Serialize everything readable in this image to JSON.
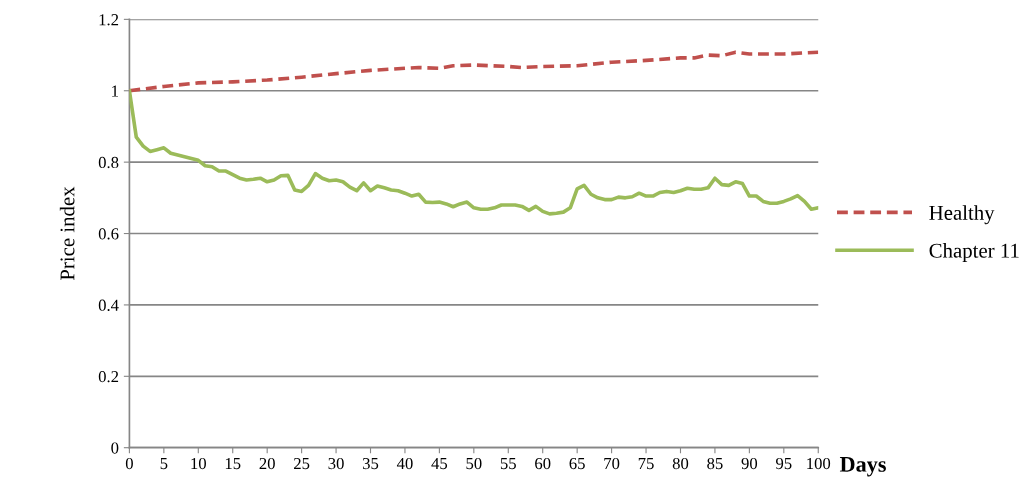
{
  "chart_data": {
    "type": "line",
    "xlabel": "Days",
    "ylabel": "Price index",
    "xlim": [
      0,
      100
    ],
    "xticks": [
      0,
      5,
      10,
      15,
      20,
      25,
      30,
      35,
      40,
      45,
      50,
      55,
      60,
      65,
      70,
      75,
      80,
      85,
      90,
      95,
      100
    ],
    "ylim": [
      0,
      1.2
    ],
    "yticks": [
      0,
      0.2,
      0.4,
      0.6,
      0.8,
      1,
      1.2
    ],
    "grid": "y",
    "legend": "right",
    "series": [
      {
        "name": "Healthy",
        "color": "#c0504d",
        "line_style": "dashed",
        "x": [
          0,
          5,
          10,
          15,
          20,
          25,
          30,
          35,
          40,
          42,
          45,
          47,
          50,
          55,
          57,
          60,
          65,
          70,
          75,
          80,
          82,
          84,
          86,
          88,
          90,
          95,
          100
        ],
        "values": [
          1.0,
          1.012,
          1.022,
          1.025,
          1.03,
          1.038,
          1.048,
          1.057,
          1.063,
          1.065,
          1.063,
          1.07,
          1.072,
          1.068,
          1.065,
          1.068,
          1.07,
          1.08,
          1.085,
          1.092,
          1.092,
          1.1,
          1.098,
          1.108,
          1.103,
          1.103,
          1.108
        ]
      },
      {
        "name": "Chapter 11",
        "color": "#9bbb59",
        "line_style": "solid",
        "x": [
          0,
          1,
          2,
          3,
          4,
          5,
          6,
          7,
          8,
          9,
          10,
          11,
          12,
          13,
          14,
          15,
          16,
          17,
          18,
          19,
          20,
          21,
          22,
          23,
          24,
          25,
          26,
          27,
          28,
          29,
          30,
          31,
          32,
          33,
          34,
          35,
          36,
          37,
          38,
          39,
          40,
          41,
          42,
          43,
          44,
          45,
          46,
          47,
          48,
          49,
          50,
          51,
          52,
          53,
          54,
          55,
          56,
          57,
          58,
          59,
          60,
          61,
          62,
          63,
          64,
          65,
          66,
          67,
          68,
          69,
          70,
          71,
          72,
          73,
          74,
          75,
          76,
          77,
          78,
          79,
          80,
          81,
          82,
          83,
          84,
          85,
          86,
          87,
          88,
          89,
          90,
          91,
          92,
          93,
          94,
          95,
          96,
          97,
          98,
          99,
          100
        ],
        "values": [
          1.0,
          0.87,
          0.845,
          0.83,
          0.835,
          0.84,
          0.825,
          0.82,
          0.815,
          0.81,
          0.805,
          0.79,
          0.787,
          0.775,
          0.775,
          0.765,
          0.755,
          0.75,
          0.752,
          0.755,
          0.745,
          0.75,
          0.762,
          0.763,
          0.722,
          0.718,
          0.735,
          0.768,
          0.755,
          0.748,
          0.75,
          0.745,
          0.73,
          0.72,
          0.742,
          0.72,
          0.733,
          0.728,
          0.722,
          0.72,
          0.713,
          0.705,
          0.71,
          0.688,
          0.687,
          0.688,
          0.683,
          0.675,
          0.683,
          0.688,
          0.672,
          0.668,
          0.668,
          0.672,
          0.68,
          0.68,
          0.68,
          0.676,
          0.665,
          0.676,
          0.662,
          0.655,
          0.657,
          0.66,
          0.672,
          0.725,
          0.735,
          0.71,
          0.7,
          0.695,
          0.695,
          0.702,
          0.7,
          0.703,
          0.713,
          0.705,
          0.705,
          0.715,
          0.718,
          0.715,
          0.72,
          0.727,
          0.724,
          0.724,
          0.728,
          0.755,
          0.737,
          0.735,
          0.745,
          0.74,
          0.705,
          0.705,
          0.69,
          0.685,
          0.685,
          0.69,
          0.697,
          0.706,
          0.69,
          0.668,
          0.672
        ]
      }
    ]
  }
}
